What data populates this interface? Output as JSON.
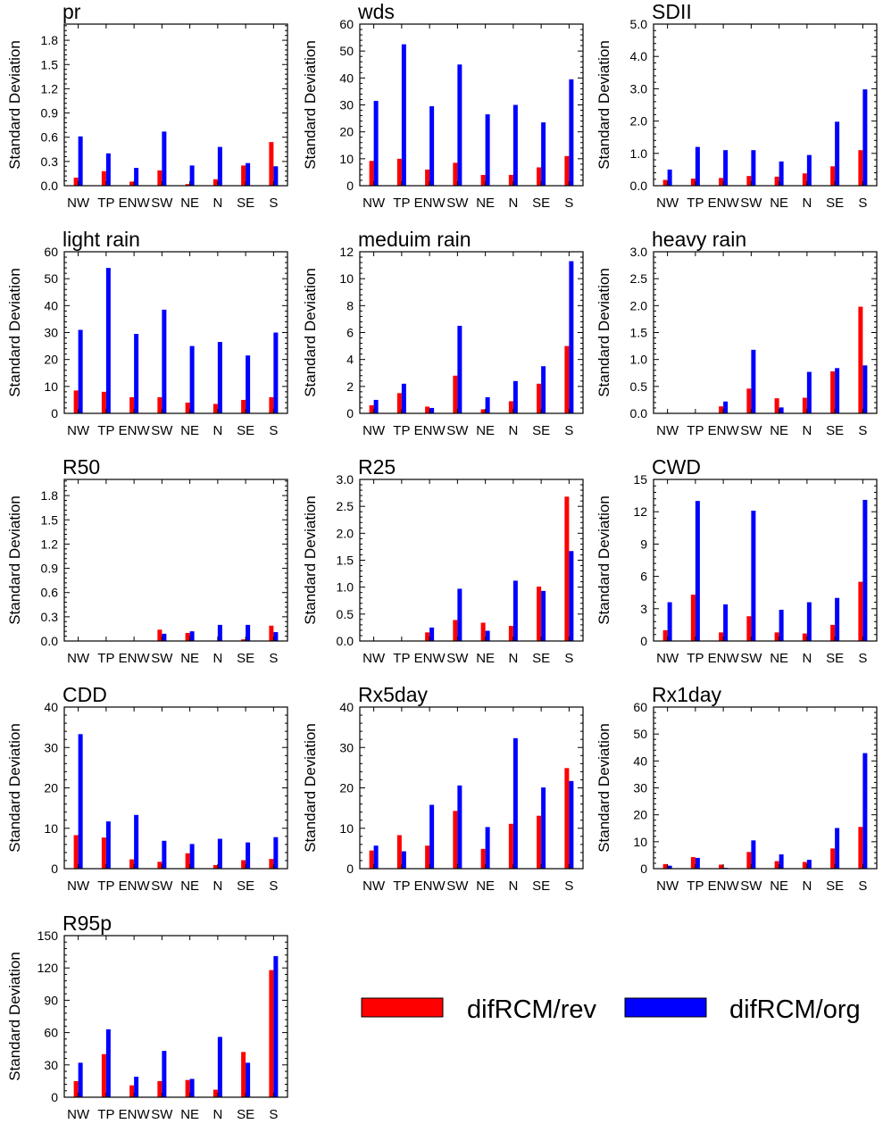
{
  "legend": {
    "entries": [
      {
        "label": "difRCM/rev",
        "color": "#ff0000"
      },
      {
        "label": "difRCM/org",
        "color": "#0000ff"
      }
    ]
  },
  "chart_data": [
    {
      "type": "bar",
      "title": "pr",
      "ylabel": "Standard Deviation",
      "categories": [
        "NW",
        "TP",
        "ENW",
        "SW",
        "NE",
        "N",
        "SE",
        "S"
      ],
      "ylim": [
        0,
        2.0
      ],
      "yticks": [
        "0.0",
        "0.3",
        "0.6",
        "0.9",
        "1.2",
        "1.5",
        "1.8"
      ],
      "series": [
        {
          "name": "difRCM/rev",
          "color": "#ff0000",
          "values": [
            0.1,
            0.18,
            0.05,
            0.19,
            0.02,
            0.08,
            0.25,
            0.54
          ]
        },
        {
          "name": "difRCM/org",
          "color": "#0000ff",
          "values": [
            0.61,
            0.4,
            0.22,
            0.67,
            0.25,
            0.48,
            0.28,
            0.24
          ]
        }
      ]
    },
    {
      "type": "bar",
      "title": "wds",
      "ylabel": "Standard Deviation",
      "categories": [
        "NW",
        "TP",
        "ENW",
        "SW",
        "NE",
        "N",
        "SE",
        "S"
      ],
      "ylim": [
        0,
        60
      ],
      "yticks": [
        "0",
        "10",
        "20",
        "30",
        "40",
        "50",
        "60"
      ],
      "series": [
        {
          "name": "difRCM/rev",
          "color": "#ff0000",
          "values": [
            9.2,
            10,
            6,
            8.5,
            4,
            4,
            6.8,
            11
          ]
        },
        {
          "name": "difRCM/org",
          "color": "#0000ff",
          "values": [
            31.5,
            52.5,
            29.5,
            45,
            26.5,
            30,
            23.5,
            39.5
          ]
        }
      ]
    },
    {
      "type": "bar",
      "title": "SDII",
      "ylabel": "Standard Deviation",
      "categories": [
        "NW",
        "TP",
        "ENW",
        "SW",
        "NE",
        "N",
        "SE",
        "S"
      ],
      "ylim": [
        0,
        5.0
      ],
      "yticks": [
        "0.0",
        "1.0",
        "2.0",
        "3.0",
        "4.0",
        "5.0"
      ],
      "series": [
        {
          "name": "difRCM/rev",
          "color": "#ff0000",
          "values": [
            0.18,
            0.22,
            0.24,
            0.3,
            0.28,
            0.38,
            0.6,
            1.1
          ]
        },
        {
          "name": "difRCM/org",
          "color": "#0000ff",
          "values": [
            0.5,
            1.2,
            1.1,
            1.1,
            0.75,
            0.95,
            1.98,
            2.98
          ]
        }
      ]
    },
    {
      "type": "bar",
      "title": "light rain",
      "ylabel": "Standard Deviation",
      "categories": [
        "NW",
        "TP",
        "ENW",
        "SW",
        "NE",
        "N",
        "SE",
        "S"
      ],
      "ylim": [
        0,
        60
      ],
      "yticks": [
        "0",
        "10",
        "20",
        "30",
        "40",
        "50",
        "60"
      ],
      "series": [
        {
          "name": "difRCM/rev",
          "color": "#ff0000",
          "values": [
            8.5,
            8,
            6,
            6,
            4,
            3.5,
            5,
            6
          ]
        },
        {
          "name": "difRCM/org",
          "color": "#0000ff",
          "values": [
            31,
            54,
            29.5,
            38.5,
            25,
            26.5,
            21.5,
            30
          ]
        }
      ]
    },
    {
      "type": "bar",
      "title": "meduim rain",
      "ylabel": "Standard Deviation",
      "categories": [
        "NW",
        "TP",
        "ENW",
        "SW",
        "NE",
        "N",
        "SE",
        "S"
      ],
      "ylim": [
        0,
        12
      ],
      "yticks": [
        "0",
        "2",
        "4",
        "6",
        "8",
        "10",
        "12"
      ],
      "series": [
        {
          "name": "difRCM/rev",
          "color": "#ff0000",
          "values": [
            0.6,
            1.5,
            0.5,
            2.8,
            0.3,
            0.9,
            2.2,
            5
          ]
        },
        {
          "name": "difRCM/org",
          "color": "#0000ff",
          "values": [
            1.0,
            2.2,
            0.4,
            6.5,
            1.2,
            2.4,
            3.5,
            11.3
          ]
        }
      ]
    },
    {
      "type": "bar",
      "title": "heavy rain",
      "ylabel": "Standard Deviation",
      "categories": [
        "NW",
        "TP",
        "ENW",
        "SW",
        "NE",
        "N",
        "SE",
        "S"
      ],
      "ylim": [
        0,
        3.0
      ],
      "yticks": [
        "0.0",
        "0.5",
        "1.0",
        "1.5",
        "2.0",
        "2.5",
        "3.0"
      ],
      "series": [
        {
          "name": "difRCM/rev",
          "color": "#ff0000",
          "values": [
            0,
            0,
            0.13,
            0.46,
            0.28,
            0.29,
            0.78,
            1.98
          ]
        },
        {
          "name": "difRCM/org",
          "color": "#0000ff",
          "values": [
            0,
            0,
            0.22,
            1.18,
            0.11,
            0.77,
            0.84,
            0.89
          ]
        }
      ]
    },
    {
      "type": "bar",
      "title": "R50",
      "ylabel": "Standard Deviation",
      "categories": [
        "NW",
        "TP",
        "ENW",
        "SW",
        "NE",
        "N",
        "SE",
        "S"
      ],
      "ylim": [
        0,
        2.0
      ],
      "yticks": [
        "0.0",
        "0.3",
        "0.6",
        "0.9",
        "1.2",
        "1.5",
        "1.8"
      ],
      "series": [
        {
          "name": "difRCM/rev",
          "color": "#ff0000",
          "values": [
            0,
            0,
            0,
            0.14,
            0.1,
            0,
            0.02,
            0.19
          ]
        },
        {
          "name": "difRCM/org",
          "color": "#0000ff",
          "values": [
            0,
            0,
            0,
            0.09,
            0.12,
            0.2,
            0.2,
            0.11
          ]
        }
      ]
    },
    {
      "type": "bar",
      "title": "R25",
      "ylabel": "Standard Deviation",
      "categories": [
        "NW",
        "TP",
        "ENW",
        "SW",
        "NE",
        "N",
        "SE",
        "S"
      ],
      "ylim": [
        0,
        3.0
      ],
      "yticks": [
        "0.0",
        "0.5",
        "1.0",
        "1.5",
        "2.0",
        "2.5",
        "3.0"
      ],
      "series": [
        {
          "name": "difRCM/rev",
          "color": "#ff0000",
          "values": [
            0,
            0,
            0.16,
            0.39,
            0.34,
            0.28,
            1.01,
            2.68
          ]
        },
        {
          "name": "difRCM/org",
          "color": "#0000ff",
          "values": [
            0,
            0,
            0.25,
            0.97,
            0.19,
            1.12,
            0.93,
            1.67
          ]
        }
      ]
    },
    {
      "type": "bar",
      "title": "CWD",
      "ylabel": "Standard Deviation",
      "categories": [
        "NW",
        "TP",
        "ENW",
        "SW",
        "NE",
        "N",
        "SE",
        "S"
      ],
      "ylim": [
        0,
        15
      ],
      "yticks": [
        "0",
        "3",
        "6",
        "9",
        "12",
        "15"
      ],
      "series": [
        {
          "name": "difRCM/rev",
          "color": "#ff0000",
          "values": [
            1.0,
            4.3,
            0.8,
            2.3,
            0.8,
            0.7,
            1.5,
            5.5
          ]
        },
        {
          "name": "difRCM/org",
          "color": "#0000ff",
          "values": [
            3.6,
            13,
            3.4,
            12.1,
            2.9,
            3.6,
            4.0,
            13.1
          ]
        }
      ]
    },
    {
      "type": "bar",
      "title": "CDD",
      "ylabel": "Standard Deviation",
      "categories": [
        "NW",
        "TP",
        "ENW",
        "SW",
        "NE",
        "N",
        "SE",
        "S"
      ],
      "ylim": [
        0,
        40
      ],
      "yticks": [
        "0",
        "10",
        "20",
        "30",
        "40"
      ],
      "series": [
        {
          "name": "difRCM/rev",
          "color": "#ff0000",
          "values": [
            8.3,
            7.7,
            2.3,
            1.7,
            3.8,
            0.9,
            2.1,
            2.4
          ]
        },
        {
          "name": "difRCM/org",
          "color": "#0000ff",
          "values": [
            33.3,
            11.7,
            13.3,
            6.9,
            6.1,
            7.4,
            6.5,
            7.8
          ]
        }
      ]
    },
    {
      "type": "bar",
      "title": "Rx5day",
      "ylabel": "Standard Deviation",
      "categories": [
        "NW",
        "TP",
        "ENW",
        "SW",
        "NE",
        "N",
        "SE",
        "S"
      ],
      "ylim": [
        0,
        40
      ],
      "yticks": [
        "0",
        "10",
        "20",
        "30",
        "40"
      ],
      "series": [
        {
          "name": "difRCM/rev",
          "color": "#ff0000",
          "values": [
            4.5,
            8.3,
            5.7,
            14.3,
            4.9,
            11.1,
            13.1,
            24.9
          ]
        },
        {
          "name": "difRCM/org",
          "color": "#0000ff",
          "values": [
            5.7,
            4.3,
            15.8,
            20.6,
            10.3,
            32.3,
            20.1,
            21.7
          ]
        }
      ]
    },
    {
      "type": "bar",
      "title": "Rx1day",
      "ylabel": "Standard Deviation",
      "categories": [
        "NW",
        "TP",
        "ENW",
        "SW",
        "NE",
        "N",
        "SE",
        "S"
      ],
      "ylim": [
        0,
        60
      ],
      "yticks": [
        "0",
        "10",
        "20",
        "30",
        "40",
        "50",
        "60"
      ],
      "series": [
        {
          "name": "difRCM/rev",
          "color": "#ff0000",
          "values": [
            1.7,
            4.3,
            1.5,
            6.2,
            2.8,
            2.5,
            7.5,
            15.5
          ]
        },
        {
          "name": "difRCM/org",
          "color": "#0000ff",
          "values": [
            1.1,
            4.0,
            0.3,
            10.5,
            5.3,
            3.3,
            15.1,
            42.9
          ]
        }
      ]
    },
    {
      "type": "bar",
      "title": "R95p",
      "ylabel": "Standard Deviation",
      "categories": [
        "NW",
        "TP",
        "ENW",
        "SW",
        "NE",
        "N",
        "SE",
        "S"
      ],
      "ylim": [
        0,
        150
      ],
      "yticks": [
        "0",
        "30",
        "60",
        "90",
        "120",
        "150"
      ],
      "series": [
        {
          "name": "difRCM/rev",
          "color": "#ff0000",
          "values": [
            15,
            40,
            11,
            15,
            16,
            7,
            42,
            118
          ]
        },
        {
          "name": "difRCM/org",
          "color": "#0000ff",
          "values": [
            32,
            63,
            19,
            43,
            17,
            56,
            32,
            131
          ]
        }
      ]
    }
  ]
}
